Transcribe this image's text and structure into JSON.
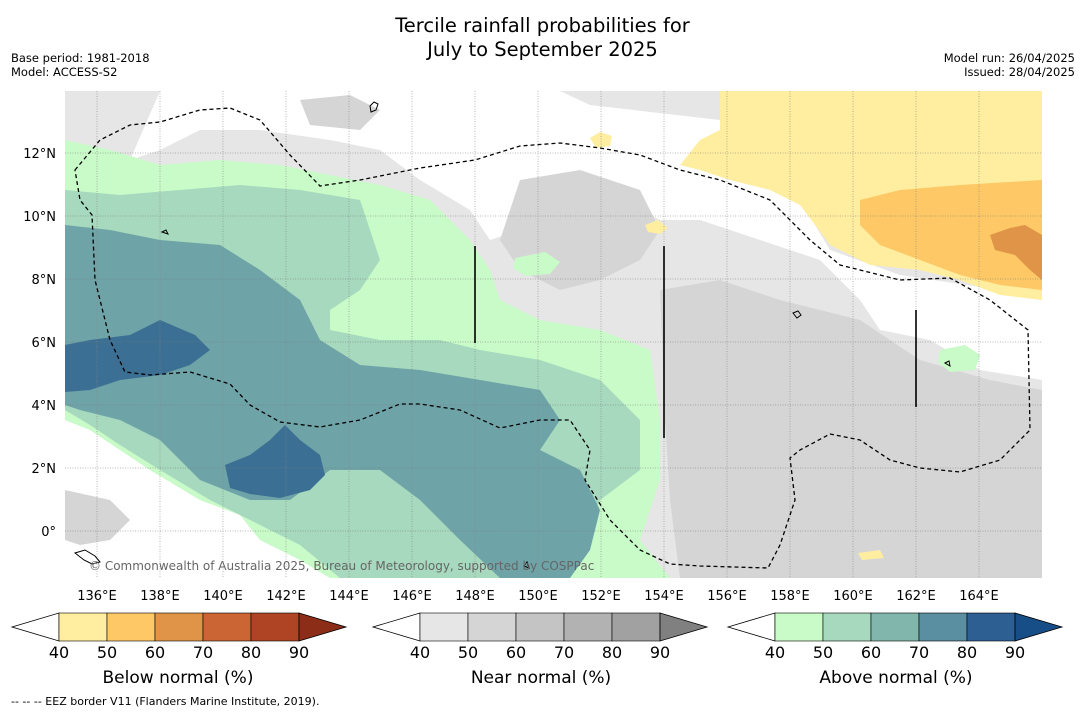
{
  "title": {
    "line1": "Tercile rainfall probabilities for",
    "line2": "July to September 2025"
  },
  "info": {
    "base_period": "Base period: 1981-2018",
    "model": "Model: ACCESS-S2",
    "model_run": "Model run: 26/04/2025",
    "issued": "Issued: 28/04/2025"
  },
  "map": {
    "lat_labels": [
      "12°N",
      "10°N",
      "8°N",
      "6°N",
      "4°N",
      "2°N",
      "0°"
    ],
    "lon_labels": [
      "136°E",
      "138°E",
      "140°E",
      "142°E",
      "144°E",
      "146°E",
      "148°E",
      "150°E",
      "152°E",
      "154°E",
      "156°E",
      "158°E",
      "160°E",
      "162°E",
      "164°E"
    ],
    "copyright": "© Commonwealth of Australia 2025, Bureau of Meteorology, supported by COSPPac"
  },
  "colorbars": [
    {
      "key": "below",
      "title": "Below normal (%)",
      "ticks": [
        "40",
        "50",
        "60",
        "70",
        "80",
        "90"
      ],
      "colors": [
        "#ffffff",
        "#ffeea0",
        "#fdc865",
        "#e09447",
        "#cc6534",
        "#ae4423",
        "#8c2d17"
      ]
    },
    {
      "key": "near",
      "title": "Near normal (%)",
      "ticks": [
        "40",
        "50",
        "60",
        "70",
        "80",
        "90"
      ],
      "colors": [
        "#ffffff",
        "#e6e6e6",
        "#d5d5d5",
        "#c4c4c4",
        "#b2b2b2",
        "#a1a1a1",
        "#808080"
      ]
    },
    {
      "key": "above",
      "title": "Above normal (%)",
      "ticks": [
        "40",
        "50",
        "60",
        "70",
        "80",
        "90"
      ],
      "colors": [
        "#ffffff",
        "#c8fbc8",
        "#a6d9bd",
        "#80b6ab",
        "#5a8ea1",
        "#2e5f92",
        "#184e87"
      ]
    }
  ],
  "footnote": "--  --  -- EEZ border V11 (Flanders Marine Institute, 2019)."
}
